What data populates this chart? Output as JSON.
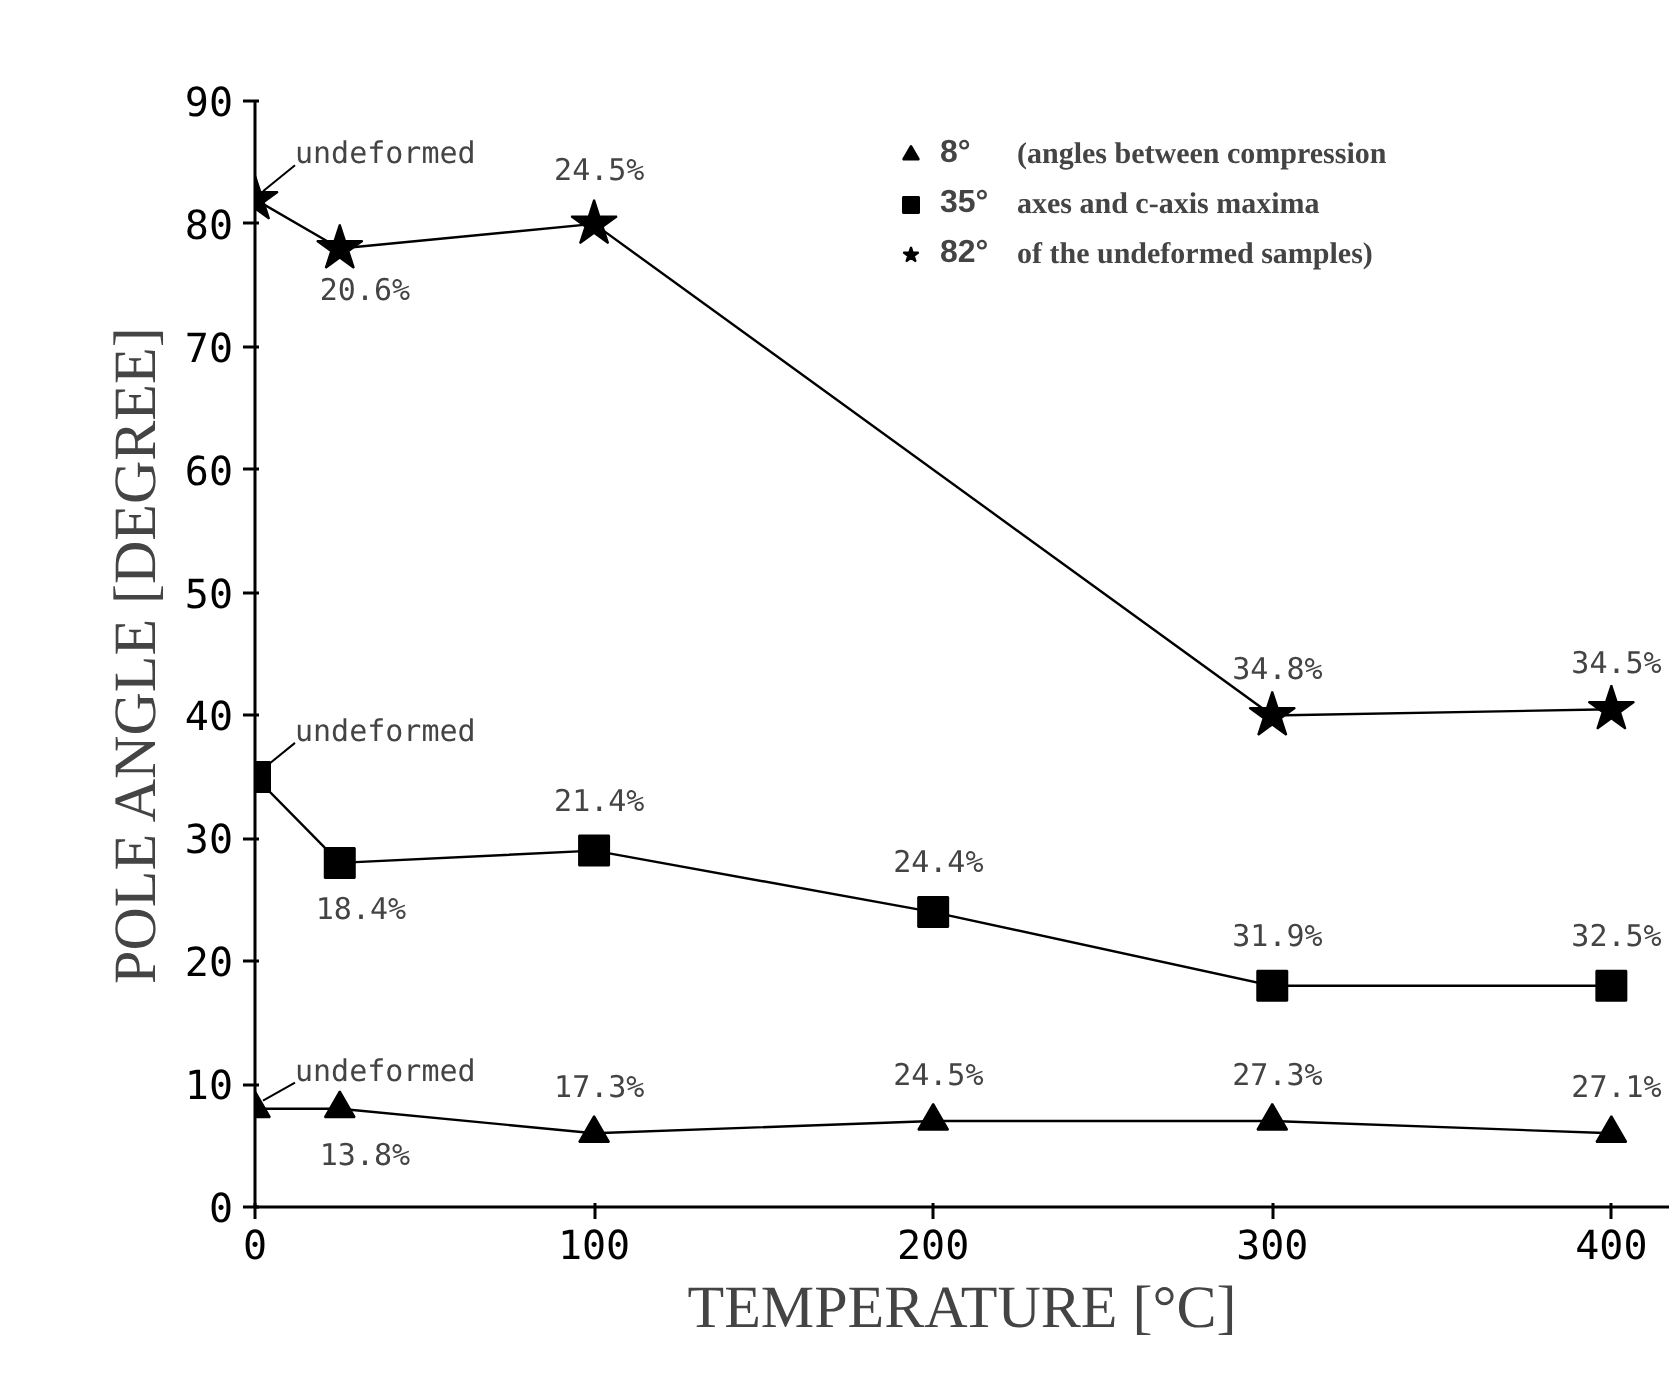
{
  "chart_data": {
    "type": "line",
    "xlabel": "TEMPERATURE [°C]",
    "ylabel": "POLE ANGLE [DEGREE]",
    "series": [
      {
        "name": "8°",
        "color": "#000000",
        "marker": "triangle",
        "x": [
          0,
          25,
          100,
          200,
          300,
          400
        ],
        "values": [
          8,
          8,
          6,
          7,
          7,
          6
        ]
      },
      {
        "name": "35°",
        "color": "#000000",
        "marker": "square",
        "x": [
          0,
          25,
          100,
          200,
          300,
          400
        ],
        "values": [
          35,
          28,
          29,
          24,
          18,
          18
        ]
      },
      {
        "name": "82°",
        "color": "#000000",
        "marker": "star",
        "x": [
          0,
          25,
          100,
          300,
          400
        ],
        "values": [
          82,
          78,
          80,
          40,
          40.5
        ]
      }
    ],
    "xlim": [
      0,
      417
    ],
    "ylim": [
      0,
      90
    ],
    "xticks": [
      0,
      100,
      200,
      300,
      400
    ],
    "yticks": [
      0,
      10,
      20,
      30,
      40,
      50,
      60,
      70,
      80,
      90
    ],
    "grid": false,
    "legend": "top right",
    "line_style": "solid",
    "annotations": [
      "(angles between compression",
      "axes and c-axis maxima",
      "of the undeformed samples)",
      {
        "text": "undeformed",
        "x": 0,
        "y": 82
      },
      {
        "text": "20.6%",
        "x": 25,
        "y": 78
      },
      {
        "text": "24.5%",
        "x": 100,
        "y": 80
      },
      {
        "text": "34.8%",
        "x": 300,
        "y": 40
      },
      {
        "text": "34.5%",
        "x": 400,
        "y": 40.5
      },
      {
        "text": "undeformed",
        "x": 0,
        "y": 35
      },
      {
        "text": "18.4%",
        "x": 25,
        "y": 28
      },
      {
        "text": "21.4%",
        "x": 100,
        "y": 29
      },
      {
        "text": "24.4%",
        "x": 200,
        "y": 24
      },
      {
        "text": "31.9%",
        "x": 300,
        "y": 18
      },
      {
        "text": "32.5%",
        "x": 400,
        "y": 18
      },
      {
        "text": "undeformed",
        "x": 0,
        "y": 8
      },
      {
        "text": "13.8%",
        "x": 25,
        "y": 8
      },
      {
        "text": "17.3%",
        "x": 100,
        "y": 6
      },
      {
        "text": "24.5%",
        "x": 200,
        "y": 7
      },
      {
        "text": "27.3%",
        "x": 300,
        "y": 7
      },
      {
        "text": "27.1%",
        "x": 400,
        "y": 6
      }
    ]
  }
}
